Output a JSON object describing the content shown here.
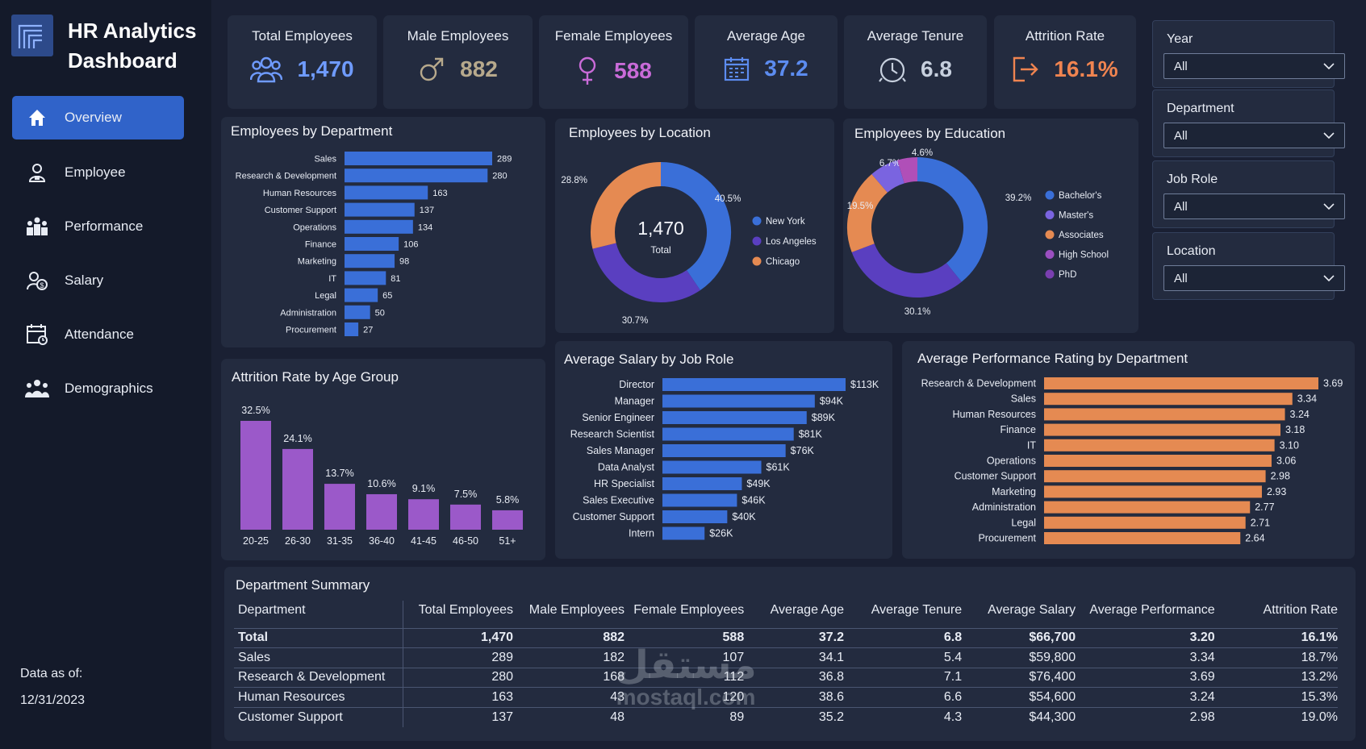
{
  "app": {
    "title_line1": "HR Analytics",
    "title_line2": "Dashboard"
  },
  "nav": [
    {
      "label": "Overview",
      "icon": "home-icon",
      "active": true
    },
    {
      "label": "Employee",
      "icon": "employee-icon"
    },
    {
      "label": "Performance",
      "icon": "performance-icon"
    },
    {
      "label": "Salary",
      "icon": "salary-icon"
    },
    {
      "label": "Attendance",
      "icon": "attendance-icon"
    },
    {
      "label": "Demographics",
      "icon": "demographics-icon"
    }
  ],
  "footer": {
    "data_as_of_label": "Data as of:",
    "date": "12/31/2023"
  },
  "kpis": [
    {
      "title": "Total Employees",
      "value": "1,470",
      "icon": "people-icon",
      "color": "#6f9bff"
    },
    {
      "title": "Male Employees",
      "value": "882",
      "icon": "male-icon",
      "color": "#b7a98c"
    },
    {
      "title": "Female Employees",
      "value": "588",
      "icon": "female-icon",
      "color": "#c96bd8"
    },
    {
      "title": "Average Age",
      "value": "37.2",
      "icon": "calendar-icon",
      "color": "#5c8cf0"
    },
    {
      "title": "Average Tenure",
      "value": "6.8",
      "icon": "clock-icon",
      "color": "#c7d0de"
    },
    {
      "title": "Attrition Rate",
      "value": "16.1%",
      "icon": "exit-icon",
      "color": "#f08450"
    }
  ],
  "filters": [
    {
      "label": "Year",
      "value": "All"
    },
    {
      "label": "Department",
      "value": "All"
    },
    {
      "label": "Job Role",
      "value": "All"
    },
    {
      "label": "Location",
      "value": "All"
    }
  ],
  "colors": {
    "blue": "#3a6fd8",
    "purple": "#9b59c9",
    "orange": "#e58a52",
    "violet": "#5a3fc0",
    "education_purple": "#7a64e0",
    "pink": "#b04fb8"
  },
  "chart_data": [
    {
      "id": "dept",
      "type": "bar",
      "orientation": "horizontal",
      "title": "Employees by Department",
      "categories": [
        "Sales",
        "Research & Development",
        "Human Resources",
        "Customer Support",
        "Operations",
        "Finance",
        "Marketing",
        "IT",
        "Legal",
        "Administration",
        "Procurement"
      ],
      "values": [
        289,
        280,
        163,
        137,
        134,
        106,
        98,
        81,
        65,
        50,
        27
      ],
      "labels": [
        "289",
        "280",
        "163",
        "137",
        "134",
        "106",
        "98",
        "81",
        "65",
        "50",
        "27"
      ],
      "color": "#3a6fd8"
    },
    {
      "id": "location",
      "type": "pie",
      "donut": true,
      "title": "Employees by Location",
      "center_value": "1,470",
      "center_label": "Total",
      "categories": [
        "New York",
        "Los Angeles",
        "Chicago"
      ],
      "values": [
        40.5,
        30.7,
        28.8
      ],
      "labels": [
        "40.5%",
        "30.7%",
        "28.8%"
      ],
      "colors": [
        "#3a6fd8",
        "#5a3fc0",
        "#e58a52"
      ],
      "legend": "right"
    },
    {
      "id": "education",
      "type": "pie",
      "donut": true,
      "title": "Employees by Education",
      "categories": [
        "Bachelor's",
        "Master's",
        "Associates",
        "High School",
        "PhD"
      ],
      "values": [
        39.2,
        30.1,
        19.5,
        6.7,
        4.6
      ],
      "labels": [
        "39.2%",
        "30.1%",
        "19.5%",
        "6.7%",
        "4.6%"
      ],
      "colors": [
        "#3a6fd8",
        "#5a3fc0",
        "#e58a52",
        "#7a64e0",
        "#b04fb8"
      ],
      "legend_colors": [
        "#3a6fd8",
        "#7a64e0",
        "#e58a52",
        "#9b4fc0",
        "#7a3fb0"
      ],
      "legend": "right"
    },
    {
      "id": "attrition",
      "type": "bar",
      "orientation": "vertical",
      "title": "Attrition Rate by Age Group",
      "categories": [
        "20-25",
        "26-30",
        "31-35",
        "36-40",
        "41-45",
        "46-50",
        "51+"
      ],
      "values": [
        32.5,
        24.1,
        13.7,
        10.6,
        9.1,
        7.5,
        5.8
      ],
      "labels": [
        "32.5%",
        "24.1%",
        "13.7%",
        "10.6%",
        "9.1%",
        "7.5%",
        "5.8%"
      ],
      "color": "#9b59c9"
    },
    {
      "id": "salary",
      "type": "bar",
      "orientation": "horizontal",
      "title": "Average Salary by Job Role",
      "categories": [
        "Director",
        "Manager",
        "Senior Engineer",
        "Research Scientist",
        "Sales Manager",
        "Data Analyst",
        "HR Specialist",
        "Sales Executive",
        "Customer Support",
        "Intern"
      ],
      "values": [
        113,
        94,
        89,
        81,
        76,
        61,
        49,
        46,
        40,
        26
      ],
      "labels": [
        "$113K",
        "$94K",
        "$89K",
        "$81K",
        "$76K",
        "$61K",
        "$49K",
        "$46K",
        "$40K",
        "$26K"
      ],
      "color": "#3a6fd8"
    },
    {
      "id": "performance",
      "type": "bar",
      "orientation": "horizontal",
      "title": "Average Performance Rating by Department",
      "categories": [
        "Research & Development",
        "Sales",
        "Human Resources",
        "Finance",
        "IT",
        "Operations",
        "Customer Support",
        "Marketing",
        "Administration",
        "Legal",
        "Procurement"
      ],
      "values": [
        3.69,
        3.34,
        3.24,
        3.18,
        3.1,
        3.06,
        2.98,
        2.93,
        2.77,
        2.71,
        2.64
      ],
      "labels": [
        "3.69",
        "3.34",
        "3.24",
        "3.18",
        "3.10",
        "3.06",
        "2.98",
        "2.93",
        "2.77",
        "2.71",
        "2.64"
      ],
      "color": "#e58a52"
    }
  ],
  "summary": {
    "title": "Department Summary",
    "columns": [
      "Department",
      "Total Employees",
      "Male Employees",
      "Female Employees",
      "Average Age",
      "Average Tenure",
      "Average Salary",
      "Average  Performance",
      "Attrition Rate"
    ],
    "rows": [
      [
        "Total",
        "1,470",
        "882",
        "588",
        "37.2",
        "6.8",
        "$66,700",
        "3.20",
        "16.1%"
      ],
      [
        "Sales",
        "289",
        "182",
        "107",
        "34.1",
        "5.4",
        "$59,800",
        "3.34",
        "18.7%"
      ],
      [
        "Research & Development",
        "280",
        "168",
        "112",
        "36.8",
        "7.1",
        "$76,400",
        "3.69",
        "13.2%"
      ],
      [
        "Human Resources",
        "163",
        "43",
        "120",
        "38.6",
        "6.6",
        "$54,600",
        "3.24",
        "15.3%"
      ],
      [
        "Customer Support",
        "137",
        "48",
        "89",
        "35.2",
        "4.3",
        "$44,300",
        "2.98",
        "19.0%"
      ]
    ]
  },
  "watermark": {
    "arabic": "مستقل",
    "latin": "mostaql.com"
  }
}
